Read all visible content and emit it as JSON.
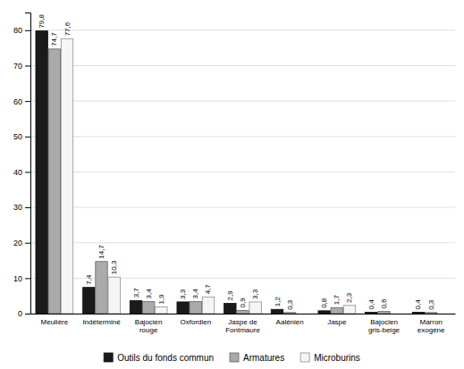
{
  "chart_data": {
    "type": "bar",
    "categories": [
      "Meulière",
      "Indéterminé",
      "Bajocien\nrouge",
      "Oxfordien",
      "Jaspe de\nFontmaure",
      "Aalénien",
      "Jaspe",
      "Bajocien\ngris-beige",
      "Marron\nexogène"
    ],
    "series": [
      {
        "name": "Outils du fonds commun",
        "color": "#1a1a1a",
        "values": [
          79.8,
          7.4,
          3.7,
          3.3,
          2.9,
          1.2,
          0.8,
          0.4,
          0.4
        ],
        "value_labels": [
          "79,8",
          "7,4",
          "3,7",
          "3,3",
          "2,9",
          "1,2",
          "0,8",
          "0,4",
          "0,4"
        ]
      },
      {
        "name": "Armatures",
        "color": "#aaaaaa",
        "values": [
          74.7,
          14.7,
          3.4,
          3.4,
          0.9,
          0.3,
          1.7,
          0.6,
          0.3
        ],
        "value_labels": [
          "74,7",
          "14,7",
          "3,4",
          "3,4",
          "0,9",
          "0,3",
          "1,7",
          "0,6",
          "0,3"
        ]
      },
      {
        "name": "Microburins",
        "color": "#f5f5f5",
        "values": [
          77.6,
          10.3,
          1.9,
          4.7,
          3.3,
          0.0,
          2.3,
          0.0,
          0.0
        ],
        "value_labels": [
          "77,6",
          "10,3",
          "1,9",
          "4,7",
          "3,3",
          null,
          "2,3",
          null,
          null
        ]
      }
    ],
    "ylim": [
      0,
      85
    ],
    "yticks": [
      0,
      10,
      20,
      30,
      40,
      50,
      60,
      70,
      80
    ],
    "grid": true,
    "legend": "bottom",
    "data_labels": true
  }
}
